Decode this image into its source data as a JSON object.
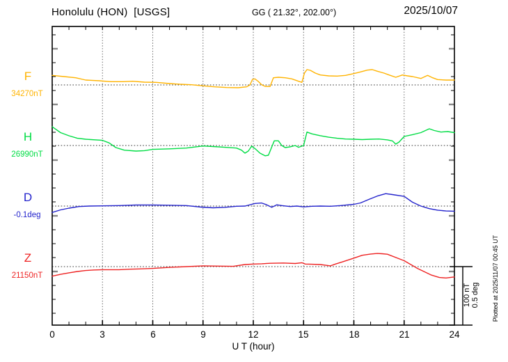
{
  "header": {
    "station_title": "Honolulu (HON)  [USGS]",
    "gg_coords": "GG ( 21.32°, 202.00°)",
    "date": "2025/10/07"
  },
  "chart_data": {
    "type": "line",
    "title": "Honolulu (HON) [USGS] magnetogram",
    "xlabel": "U T (hour)",
    "x_range": [
      0,
      24
    ],
    "x_ticks": [
      "0",
      "3",
      "6",
      "9",
      "12",
      "15",
      "18",
      "21",
      "24"
    ],
    "grid": "dotted vertical gridlines every 3 hours; dotted horizontal baseline per channel",
    "legend_position": "left channel labels",
    "scale_bar": {
      "nt_label": "100 nT",
      "deg_label": "0.5 deg"
    },
    "plotted_at": "Plotted at 2025/11/07 00:45 UT",
    "frame_color": "#000000",
    "series": [
      {
        "name": "F",
        "baseline_value": "34270nT",
        "unit": "nT",
        "color": "#FFB300",
        "points_note": "x=UT hour, y=offset from baseline in nT",
        "points": [
          [
            0,
            16.3
          ],
          [
            0.7,
            14.3
          ],
          [
            1.4,
            12.3
          ],
          [
            2,
            8.3
          ],
          [
            2.8,
            7.1
          ],
          [
            3.5,
            5.6
          ],
          [
            4.2,
            5.6
          ],
          [
            4.8,
            6.3
          ],
          [
            5.5,
            4.8
          ],
          [
            6.2,
            4.4
          ],
          [
            7,
            2.4
          ],
          [
            7.6,
            1.2
          ],
          [
            8.3,
            0.4
          ],
          [
            9,
            -1.5
          ],
          [
            9.7,
            -3.2
          ],
          [
            10.4,
            -4.4
          ],
          [
            11.1,
            -4.8
          ],
          [
            11.6,
            -3.2
          ],
          [
            11.8,
            0
          ],
          [
            11.95,
            9.5
          ],
          [
            12.1,
            10.4
          ],
          [
            12.3,
            6
          ],
          [
            12.5,
            0.4
          ],
          [
            12.7,
            -2.4
          ],
          [
            13,
            -2.7
          ],
          [
            13.2,
            12.3
          ],
          [
            13.5,
            13.1
          ],
          [
            13.9,
            12.3
          ],
          [
            14.3,
            10.4
          ],
          [
            14.7,
            6.3
          ],
          [
            14.9,
            4.4
          ],
          [
            15.05,
            20.2
          ],
          [
            15.2,
            26.2
          ],
          [
            15.4,
            25
          ],
          [
            15.7,
            20.2
          ],
          [
            16,
            17
          ],
          [
            16.5,
            15.5
          ],
          [
            17,
            15.1
          ],
          [
            17.5,
            16.3
          ],
          [
            18,
            19.4
          ],
          [
            18.4,
            22.3
          ],
          [
            18.8,
            25.4
          ],
          [
            19.1,
            26.2
          ],
          [
            19.4,
            23.4
          ],
          [
            19.8,
            20.2
          ],
          [
            20.1,
            17
          ],
          [
            20.5,
            13.1
          ],
          [
            20.9,
            17
          ],
          [
            21.2,
            15.5
          ],
          [
            21.5,
            14.3
          ],
          [
            22,
            11.1
          ],
          [
            22.4,
            16.3
          ],
          [
            22.7,
            12.3
          ],
          [
            23,
            9.2
          ],
          [
            23.5,
            8.3
          ],
          [
            24,
            8.3
          ]
        ]
      },
      {
        "name": "H",
        "baseline_value": "26990nT",
        "unit": "nT",
        "color": "#00DD44",
        "points_note": "x=UT hour, y=offset from baseline in nT",
        "points": [
          [
            0,
            32
          ],
          [
            0.5,
            22
          ],
          [
            1,
            16.7
          ],
          [
            1.5,
            12.4
          ],
          [
            2,
            10.7
          ],
          [
            3,
            8.8
          ],
          [
            3.4,
            4.4
          ],
          [
            3.8,
            -3.6
          ],
          [
            4.3,
            -8
          ],
          [
            5,
            -9.5
          ],
          [
            5.5,
            -8.8
          ],
          [
            6,
            -6.7
          ],
          [
            7,
            -5.7
          ],
          [
            8,
            -4.4
          ],
          [
            9,
            -0.8
          ],
          [
            9.6,
            -1.8
          ],
          [
            10.3,
            -3.1
          ],
          [
            11,
            -4.4
          ],
          [
            11.3,
            -8
          ],
          [
            11.5,
            -13.1
          ],
          [
            11.7,
            -9.5
          ],
          [
            11.9,
            -1.2
          ],
          [
            12.1,
            -5.2
          ],
          [
            12.4,
            -13.1
          ],
          [
            12.7,
            -17.6
          ],
          [
            12.9,
            -16.7
          ],
          [
            13.25,
            8
          ],
          [
            13.5,
            8
          ],
          [
            13.7,
            0
          ],
          [
            13.9,
            -3.6
          ],
          [
            14.2,
            -2.3
          ],
          [
            14.5,
            0
          ],
          [
            14.7,
            -3.1
          ],
          [
            15,
            0
          ],
          [
            15.2,
            23
          ],
          [
            15.5,
            19.9
          ],
          [
            16,
            16.8
          ],
          [
            16.5,
            14.2
          ],
          [
            17,
            12.4
          ],
          [
            17.5,
            11.1
          ],
          [
            18,
            10.7
          ],
          [
            18.5,
            10.1
          ],
          [
            19,
            10.7
          ],
          [
            19.5,
            11.1
          ],
          [
            20,
            9.6
          ],
          [
            20.3,
            7.9
          ],
          [
            20.5,
            2.4
          ],
          [
            20.7,
            6
          ],
          [
            21,
            15.5
          ],
          [
            21.5,
            18.6
          ],
          [
            22,
            22
          ],
          [
            22.5,
            28.6
          ],
          [
            22.8,
            25.6
          ],
          [
            23.2,
            23
          ],
          [
            23.6,
            23.8
          ],
          [
            24,
            22
          ]
        ]
      },
      {
        "name": "D",
        "baseline_value": "-0.1deg",
        "unit": "deg",
        "color": "#2222CC",
        "points_note": "x=UT hour, y=offset from baseline in degrees",
        "points": [
          [
            0,
            -0.055
          ],
          [
            0.5,
            -0.033
          ],
          [
            1,
            -0.018
          ],
          [
            1.6,
            -0.004
          ],
          [
            2.2,
            0
          ],
          [
            3,
            0.002
          ],
          [
            4,
            0.004
          ],
          [
            5,
            0.009
          ],
          [
            6,
            0.009
          ],
          [
            7,
            0.007
          ],
          [
            8,
            0.004
          ],
          [
            8.9,
            -0.009
          ],
          [
            9.6,
            -0.015
          ],
          [
            10.3,
            -0.011
          ],
          [
            11,
            -0.002
          ],
          [
            11.5,
            0
          ],
          [
            12.1,
            0.022
          ],
          [
            12.5,
            0.026
          ],
          [
            12.8,
            0.011
          ],
          [
            13.1,
            -0.011
          ],
          [
            13.4,
            0.011
          ],
          [
            13.7,
            0.004
          ],
          [
            14.2,
            -0.004
          ],
          [
            14.6,
            0
          ],
          [
            15,
            -0.007
          ],
          [
            15.5,
            -0.002
          ],
          [
            16,
            0
          ],
          [
            16.6,
            -0.002
          ],
          [
            17.2,
            0.004
          ],
          [
            18,
            0.015
          ],
          [
            18.4,
            0.027
          ],
          [
            18.9,
            0.057
          ],
          [
            19.4,
            0.086
          ],
          [
            19.9,
            0.106
          ],
          [
            20.3,
            0.098
          ],
          [
            21,
            0.083
          ],
          [
            21.5,
            0.033
          ],
          [
            22,
            0
          ],
          [
            22.5,
            -0.022
          ],
          [
            23,
            -0.035
          ],
          [
            23.5,
            -0.042
          ],
          [
            24,
            -0.044
          ]
        ]
      },
      {
        "name": "Z",
        "baseline_value": "21150nT",
        "unit": "nT",
        "color": "#EE2222",
        "points_note": "x=UT hour, y=offset from baseline in nT",
        "points": [
          [
            0,
            -16.3
          ],
          [
            0.5,
            -13.2
          ],
          [
            1,
            -10.6
          ],
          [
            1.5,
            -8.3
          ],
          [
            2,
            -6.7
          ],
          [
            2.5,
            -5.7
          ],
          [
            3,
            -5.2
          ],
          [
            4,
            -5.2
          ],
          [
            4.6,
            -4.4
          ],
          [
            5.2,
            -3.9
          ],
          [
            6,
            -3.1
          ],
          [
            7,
            -1.3
          ],
          [
            8,
            0
          ],
          [
            9,
            1.3
          ],
          [
            10,
            0.8
          ],
          [
            10.8,
            0.5
          ],
          [
            11.5,
            3.6
          ],
          [
            12,
            4.4
          ],
          [
            12.5,
            4.9
          ],
          [
            13,
            5.7
          ],
          [
            13.8,
            6.2
          ],
          [
            14.5,
            5.4
          ],
          [
            14.9,
            6.7
          ],
          [
            15.1,
            4.4
          ],
          [
            15.5,
            4
          ],
          [
            16,
            3.6
          ],
          [
            16.6,
            1.3
          ],
          [
            16.9,
            4.4
          ],
          [
            17.3,
            8
          ],
          [
            18,
            14.5
          ],
          [
            18.5,
            19.4
          ],
          [
            19,
            21.5
          ],
          [
            19.4,
            22.5
          ],
          [
            19.7,
            22
          ],
          [
            20,
            21.2
          ],
          [
            20.8,
            12.4
          ],
          [
            21,
            10.1
          ],
          [
            21.8,
            -3.1
          ],
          [
            22.6,
            -14.2
          ],
          [
            23.1,
            -18.6
          ],
          [
            23.5,
            -19.4
          ],
          [
            24,
            -17.6
          ]
        ]
      }
    ]
  }
}
